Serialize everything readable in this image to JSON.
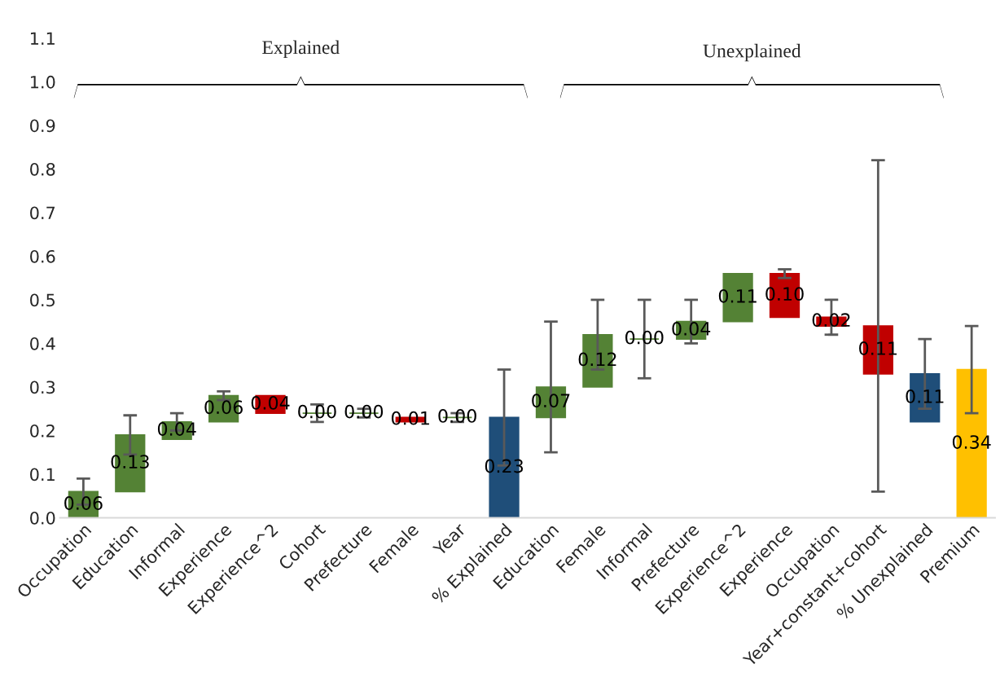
{
  "chart_data": {
    "type": "bar",
    "categories": [
      "Occupation",
      "Education",
      "Informal",
      "Experience",
      "Experience^2",
      "Cohort",
      "Prefecture",
      "Female",
      "Year",
      "% Explained",
      "Education",
      "Female",
      "Informal",
      "Prefecture",
      "Experience^2",
      "Experience",
      "Occupation",
      "Year+constant+cohort",
      "% Unexplained",
      "Premium"
    ],
    "values": [
      0.06,
      0.13,
      0.04,
      0.06,
      0.04,
      0.0,
      0.0,
      0.01,
      0.0,
      0.23,
      0.07,
      0.12,
      0.0,
      0.04,
      0.11,
      0.1,
      0.02,
      0.11,
      0.11,
      0.34
    ],
    "base": [
      0,
      0.06,
      0.18,
      0.22,
      0.24,
      0.24,
      0.24,
      0.22,
      0.23,
      0,
      0.23,
      0.3,
      0.41,
      0.41,
      0.45,
      0.46,
      0.44,
      0.33,
      0.22,
      0
    ],
    "value_labels": [
      "0.06",
      "0.13",
      "0.04",
      "0.06",
      "0.04",
      "0.00",
      "0.00",
      "0.01",
      "0.00",
      "0.23",
      "0.07",
      "0.12",
      "0.00",
      "0.04",
      "0.11",
      "0.10",
      "0.02",
      "0.11",
      "0.11",
      "0.34"
    ],
    "errors": [
      0.03,
      0.045,
      0.02,
      0.01,
      null,
      0.02,
      0.01,
      null,
      0.01,
      0.11,
      0.15,
      0.08,
      0.09,
      0.05,
      null,
      0.01,
      0.04,
      0.38,
      0.08,
      0.1
    ],
    "colors": [
      "#548235",
      "#548235",
      "#548235",
      "#548235",
      "#c00000",
      "#548235",
      "#548235",
      "#c00000",
      "#548235",
      "#1f4e79",
      "#548235",
      "#548235",
      "#548235",
      "#548235",
      "#548235",
      "#c00000",
      "#c00000",
      "#c00000",
      "#1f4e79",
      "#ffc000"
    ],
    "ylim": [
      0,
      1.1
    ],
    "yticks": [
      {
        "value": 0,
        "label": "0.0"
      },
      {
        "value": 0.1,
        "label": "0.1"
      },
      {
        "value": 0.2,
        "label": "0.2"
      },
      {
        "value": 0.3,
        "label": "0.3"
      },
      {
        "value": 0.4,
        "label": "0.4"
      },
      {
        "value": 0.5,
        "label": "0.5"
      },
      {
        "value": 0.6,
        "label": "0.6"
      },
      {
        "value": 0.7,
        "label": "0.7"
      },
      {
        "value": 0.8,
        "label": "0.8"
      },
      {
        "value": 0.9,
        "label": "0.9"
      },
      {
        "value": 1.0,
        "label": "1.0"
      },
      {
        "value": 1.1,
        "label": "1.1"
      }
    ],
    "annotations": [
      "Explained",
      "Unexplained"
    ],
    "grid": false,
    "legend": false
  }
}
